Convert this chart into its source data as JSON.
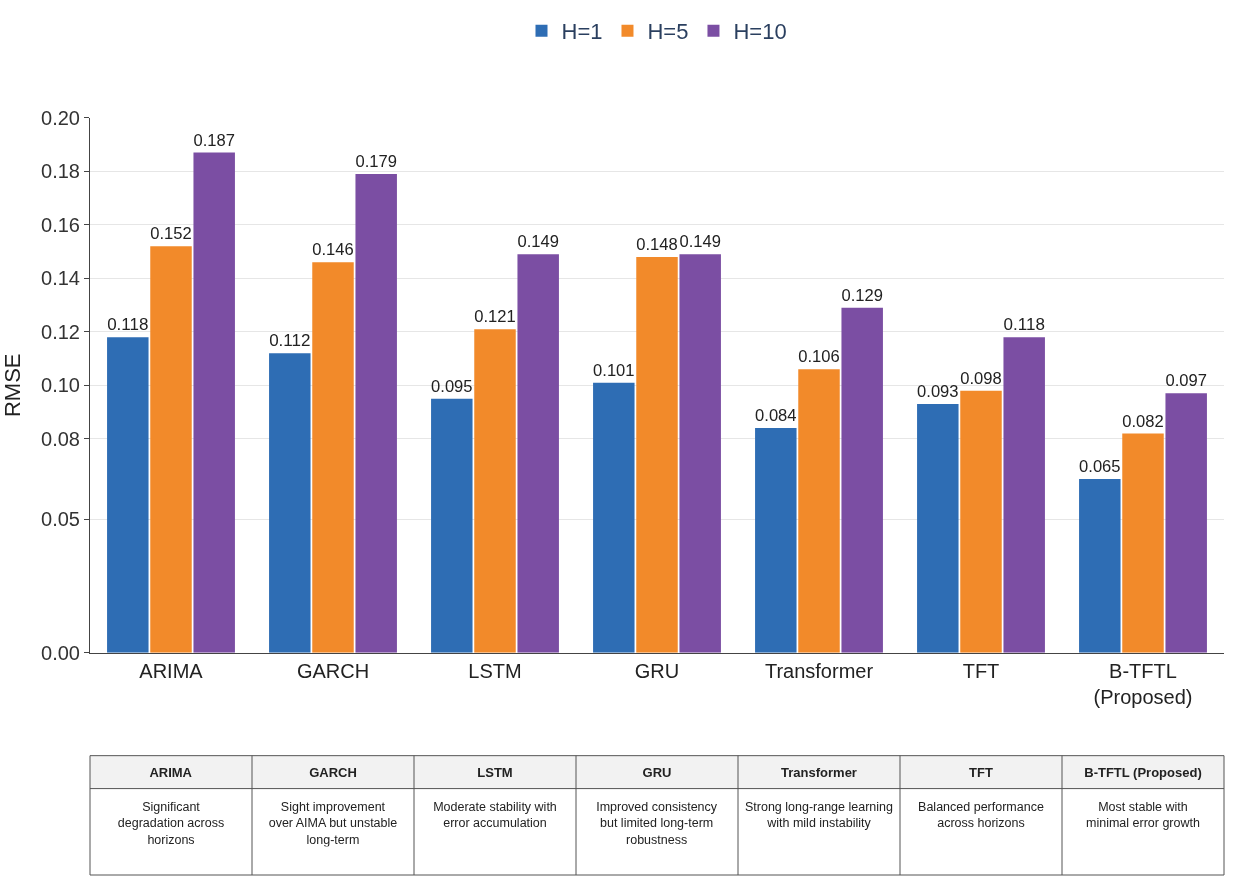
{
  "chart_data": {
    "type": "bar",
    "ylabel": "RMSE",
    "categories": [
      "ARIMA",
      "GARCH",
      "LSTM",
      "GRU",
      "Transformer",
      "TFT",
      "B-TFTL\n(Proposed)"
    ],
    "series": [
      {
        "name": "H=1",
        "color": "#2e6db4",
        "values": [
          0.118,
          0.112,
          0.095,
          0.101,
          0.084,
          0.093,
          0.065
        ]
      },
      {
        "name": "H=5",
        "color": "#f28a2a",
        "values": [
          0.152,
          0.146,
          0.121,
          0.148,
          0.106,
          0.098,
          0.082
        ]
      },
      {
        "name": "H=10",
        "color": "#7b4ea3",
        "values": [
          0.187,
          0.179,
          0.149,
          0.149,
          0.129,
          0.118,
          0.097
        ]
      }
    ],
    "data_labels": true,
    "ylim": [
      0,
      0.2
    ],
    "yticks": [
      {
        "value": 0,
        "label": "0.00"
      },
      {
        "value": 0.05,
        "label": "0.05"
      },
      {
        "value": 0.08,
        "label": "0.08"
      },
      {
        "value": 0.1,
        "label": "0.10"
      },
      {
        "value": 0.12,
        "label": "0.12"
      },
      {
        "value": 0.14,
        "label": "0.14"
      },
      {
        "value": 0.16,
        "label": "0.16"
      },
      {
        "value": 0.18,
        "label": "0.18"
      },
      {
        "value": 0.2,
        "label": "0.20"
      }
    ],
    "grid": "y",
    "legend": "top",
    "annotations": [
      "ARIMA",
      "GARCH",
      "LSTM",
      "GRU",
      "Transformer",
      "TFT",
      "B-TFTL (Proposed)",
      "Significant\ndegradation across\nhorizons",
      "Sight improvement\nover AIMA but unstable\nlong-term",
      "Moderate stability with\nerror accumulation",
      "Improved consistency\nbut limited long-term\nrobustness",
      "Strong long-range learning\nwith mild instability",
      "Balanced performance\nacross horizons",
      "Most stable with\nminimal error growth"
    ]
  }
}
